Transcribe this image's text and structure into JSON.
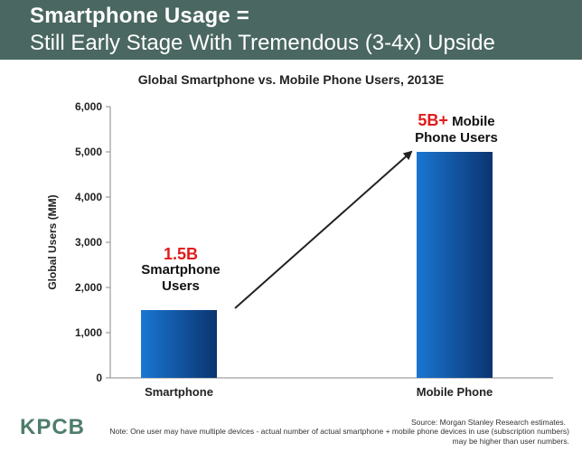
{
  "header": {
    "title_line1": "Smartphone Usage =",
    "title_line2": "Still Early Stage With Tremendous (3-4x) Upside"
  },
  "chart_data": {
    "type": "bar",
    "title": "Global Smartphone vs. Mobile Phone Users, 2013E",
    "xlabel": "",
    "ylabel": "Global Users (MM)",
    "ylim": [
      0,
      6000
    ],
    "yticks": [
      "0",
      "1,000",
      "2,000",
      "3,000",
      "4,000",
      "5,000",
      "6,000"
    ],
    "categories": [
      "Smartphone",
      "Mobile Phone"
    ],
    "values": [
      1500,
      5000
    ],
    "grid": false,
    "bar_colors": [
      "#1565c0",
      "#0a3a7a"
    ]
  },
  "annotations": {
    "smartphone": {
      "big": "1.5B",
      "line1": "Smartphone",
      "line2": "Users"
    },
    "mobile": {
      "big": "5B+",
      "line1": "Mobile",
      "line2": "Phone Users"
    }
  },
  "footer": {
    "logo": "KPCB",
    "source": "Source: Morgan Stanley Research estimates.",
    "note": "Note: One user may have multiple devices - actual number of actual smartphone + mobile phone devices in use (subscription numbers) may be higher than user numbers."
  }
}
